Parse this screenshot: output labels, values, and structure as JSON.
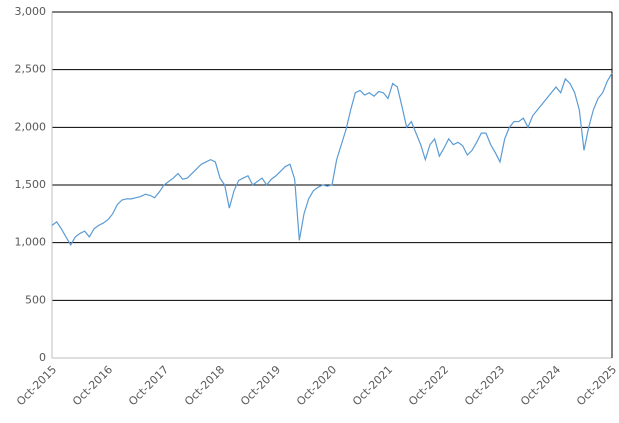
{
  "chart_data": {
    "type": "line",
    "categories": [
      "Oct-2015",
      null,
      null,
      null,
      null,
      null,
      null,
      null,
      null,
      null,
      null,
      null,
      "Oct-2016",
      null,
      null,
      null,
      null,
      null,
      null,
      null,
      null,
      null,
      null,
      null,
      "Oct-2017",
      null,
      null,
      null,
      null,
      null,
      null,
      null,
      null,
      null,
      null,
      null,
      "Oct-2018",
      null,
      null,
      null,
      null,
      null,
      null,
      null,
      null,
      null,
      null,
      null,
      "Oct-2019",
      null,
      null,
      null,
      null,
      null,
      null,
      null,
      null,
      null,
      null,
      null,
      "Oct-2020",
      null,
      null,
      null,
      null,
      null,
      null,
      null,
      null,
      null,
      null,
      null,
      "Oct-2021",
      null,
      null,
      null,
      null,
      null,
      null,
      null,
      null,
      null,
      null,
      null,
      "Oct-2022",
      null,
      null,
      null,
      null,
      null,
      null,
      null,
      null,
      null,
      null,
      null,
      "Oct-2023",
      null,
      null,
      null,
      null,
      null,
      null,
      null,
      null,
      null,
      null,
      null,
      "Oct-2024",
      null,
      null,
      null,
      null,
      null,
      null,
      null,
      null,
      null,
      null,
      null,
      "Oct-2025"
    ],
    "values": [
      1150,
      1180,
      1120,
      1050,
      980,
      1050,
      1080,
      1100,
      1050,
      1120,
      1150,
      1170,
      1200,
      1250,
      1330,
      1370,
      1380,
      1380,
      1390,
      1400,
      1420,
      1410,
      1390,
      1440,
      1500,
      1530,
      1560,
      1600,
      1550,
      1560,
      1600,
      1640,
      1680,
      1700,
      1720,
      1700,
      1560,
      1500,
      1300,
      1450,
      1540,
      1560,
      1580,
      1500,
      1530,
      1560,
      1500,
      1550,
      1580,
      1620,
      1660,
      1680,
      1550,
      1020,
      1250,
      1380,
      1450,
      1480,
      1500,
      1490,
      1500,
      1720,
      1850,
      1980,
      2150,
      2300,
      2320,
      2280,
      2300,
      2270,
      2310,
      2300,
      2250,
      2380,
      2350,
      2180,
      2000,
      2050,
      1950,
      1850,
      1720,
      1850,
      1900,
      1750,
      1820,
      1900,
      1850,
      1870,
      1840,
      1760,
      1800,
      1870,
      1950,
      1950,
      1850,
      1780,
      1700,
      1900,
      2000,
      2050,
      2050,
      2080,
      2000,
      2100,
      2150,
      2200,
      2250,
      2300,
      2350,
      2300,
      2420,
      2380,
      2300,
      2150,
      1800,
      2000,
      2150,
      2250,
      2300,
      2400,
      2470
    ],
    "color": "#5b9bd5",
    "ylim": [
      0,
      3000
    ],
    "yticks": [
      0,
      500,
      {
        "value": 1000,
        "label": "1,000"
      },
      {
        "value": 1500,
        "label": "1,500"
      },
      {
        "value": 2000,
        "label": "2,000"
      },
      {
        "value": 2500,
        "label": "2,500"
      },
      {
        "value": 3000,
        "label": "3,000"
      }
    ],
    "grid": true
  }
}
